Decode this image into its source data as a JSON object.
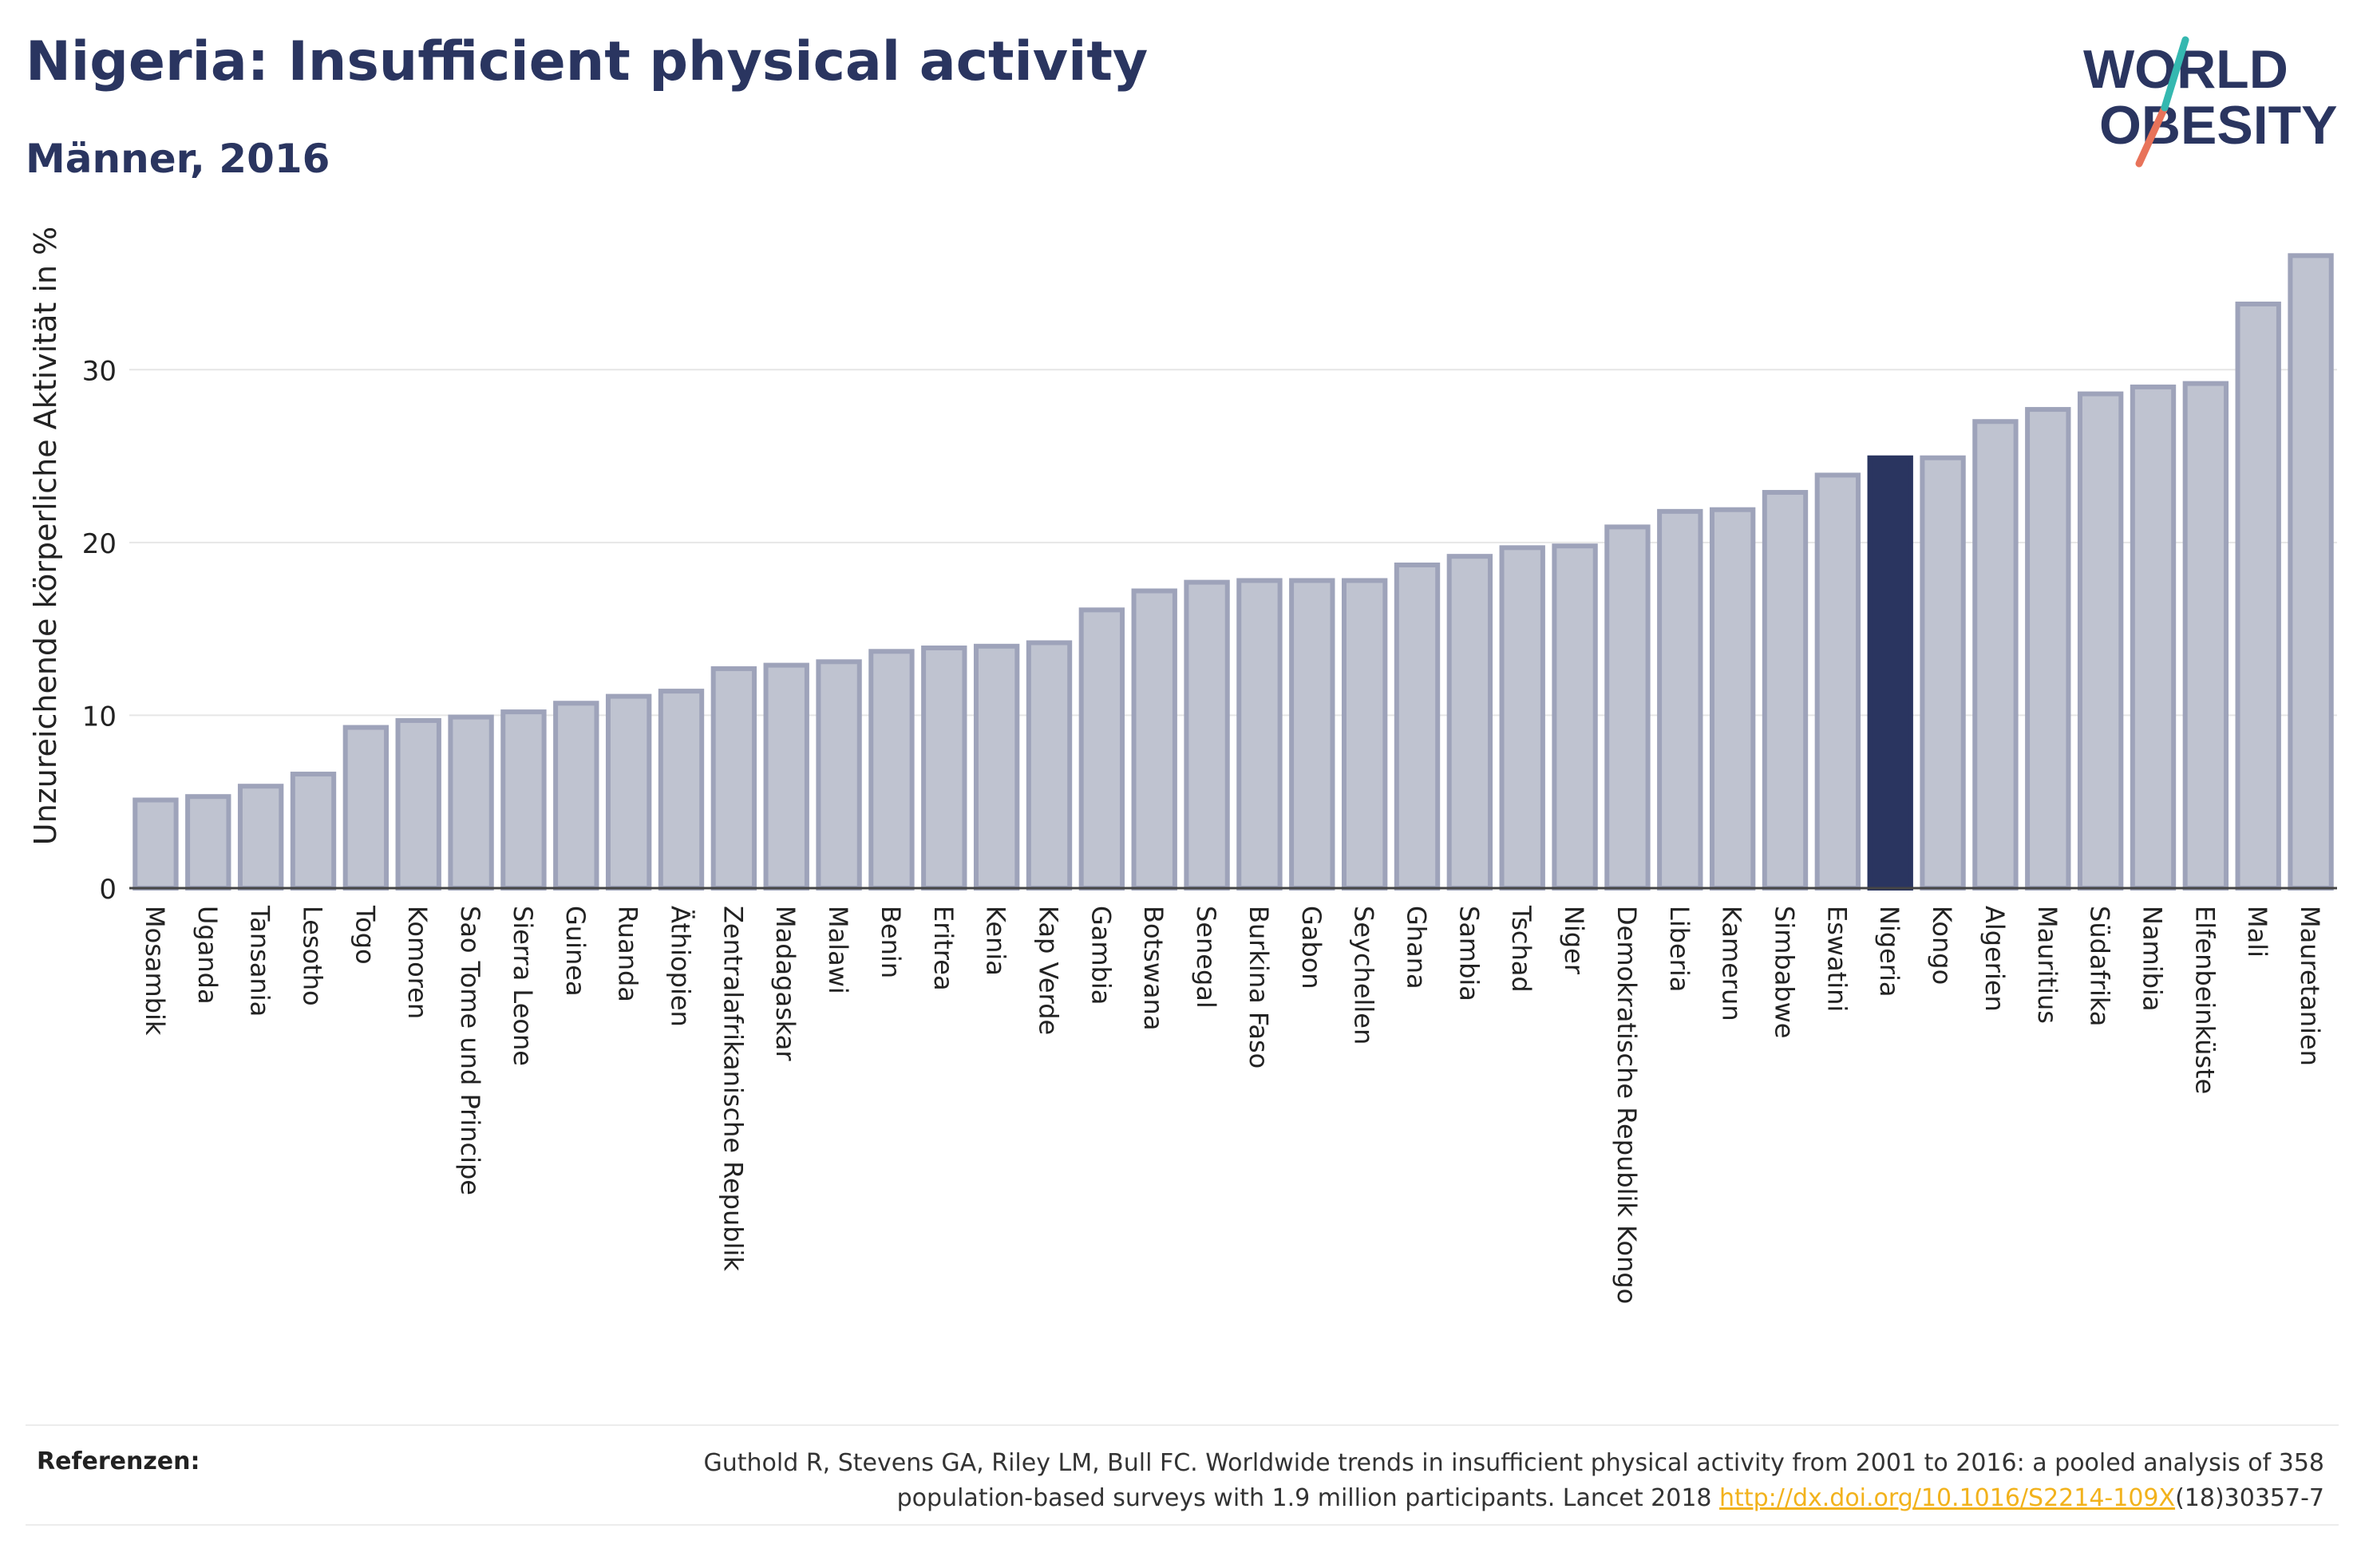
{
  "header": {
    "title": "Nigeria: Insufficient physical activity",
    "subtitle": "Männer, 2016"
  },
  "logo": {
    "line1": "WORLD",
    "line2": "OBESITY",
    "colors": {
      "text": "#2a3560",
      "slash_teal": "#35b8b0",
      "slash_coral": "#e8735a"
    }
  },
  "chart_data": {
    "type": "bar",
    "ylabel": "Unzureichende körperliche Aktivität in %",
    "xlabel": "",
    "ylim": [
      0,
      38
    ],
    "yticks": [
      0,
      10,
      20,
      30
    ],
    "grid": true,
    "highlight": "Nigeria",
    "colors": {
      "bar": "#bfc3d0",
      "bar_border": "#9ea3ba",
      "highlight": "#2a3560"
    },
    "categories": [
      "Mosambik",
      "Uganda",
      "Tansania",
      "Lesotho",
      "Togo",
      "Komoren",
      "Sao Tome und Principe",
      "Sierra Leone",
      "Guinea",
      "Ruanda",
      "Äthiopien",
      "Zentralafrikanische Republik",
      "Madagaskar",
      "Malawi",
      "Benin",
      "Eritrea",
      "Kenia",
      "Kap Verde",
      "Gambia",
      "Botswana",
      "Senegal",
      "Burkina Faso",
      "Gabon",
      "Seychellen",
      "Ghana",
      "Sambia",
      "Tschad",
      "Niger",
      "Demokratische Republik Kongo",
      "Liberia",
      "Kamerun",
      "Simbabwe",
      "Eswatini",
      "Nigeria",
      "Kongo",
      "Algerien",
      "Mauritius",
      "Südafrika",
      "Namibia",
      "Elfenbeinküste",
      "Mali",
      "Mauretanien"
    ],
    "values": [
      5.1,
      5.3,
      5.9,
      6.6,
      9.3,
      9.7,
      9.9,
      10.2,
      10.7,
      11.1,
      11.4,
      12.7,
      12.9,
      13.1,
      13.7,
      13.9,
      14.0,
      14.2,
      16.1,
      17.2,
      17.7,
      17.8,
      17.8,
      17.8,
      18.7,
      19.2,
      19.7,
      19.8,
      20.9,
      21.8,
      21.9,
      22.9,
      23.9,
      24.9,
      24.9,
      27.0,
      27.7,
      28.6,
      29.0,
      29.2,
      33.8,
      36.6
    ]
  },
  "footer": {
    "references_label": "Referenzen:",
    "reference_text_1": "Guthold R, Stevens GA, Riley LM, Bull FC. Worldwide trends in insufficient physical activity from 2001 to 2016: a pooled analysis of 358",
    "reference_text_2": "population-based surveys with 1.9 million participants. Lancet 2018 ",
    "reference_link": "http://dx.doi.org/10.1016/S2214-109X",
    "reference_suffix": "(18)30357-7"
  }
}
